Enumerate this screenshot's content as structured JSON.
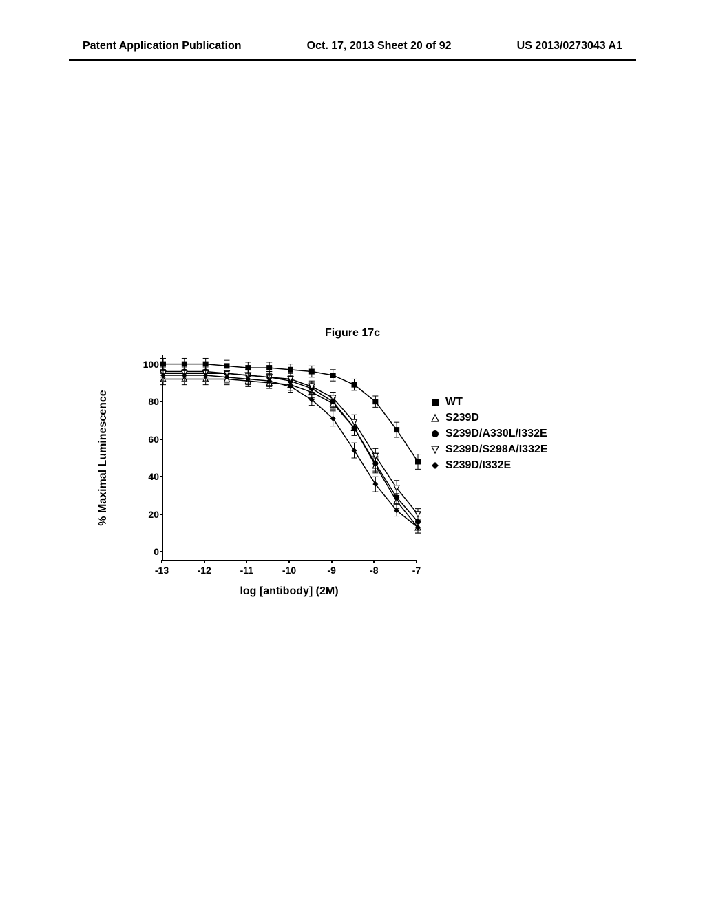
{
  "header": {
    "left": "Patent Application Publication",
    "center": "Oct. 17, 2013  Sheet 20 of 92",
    "right": "US 2013/0273043 A1"
  },
  "figure_title": "Figure 17c",
  "chart": {
    "type": "line",
    "ylabel": "% Maximal Luminescence",
    "xlabel": "log [antibody] (2M)",
    "background_color": "#ffffff",
    "axis_color": "#000000",
    "label_fontsize_pt": 12,
    "tick_fontsize_pt": 11,
    "xlim": [
      -13,
      -7
    ],
    "ylim": [
      -5,
      105
    ],
    "xtick_step": 1,
    "ytick_step": 20,
    "xticks": [
      -13,
      -12,
      -11,
      -10,
      -9,
      -8,
      -7
    ],
    "yticks": [
      0,
      20,
      40,
      60,
      80,
      100
    ],
    "error_bar_width": 4,
    "line_width": 1.5,
    "series": [
      {
        "name": "WT",
        "marker": "filled-square",
        "color": "#000000",
        "x": [
          -13,
          -12.5,
          -12,
          -11.5,
          -11,
          -10.5,
          -10,
          -9.5,
          -9,
          -8.5,
          -8,
          -7.5,
          -7
        ],
        "y": [
          100,
          100,
          100,
          99,
          98,
          98,
          97,
          96,
          94,
          89,
          80,
          65,
          48
        ],
        "err": [
          3,
          3,
          3,
          3,
          3,
          3,
          3,
          3,
          3,
          3,
          3,
          4,
          4
        ]
      },
      {
        "name": "S239D",
        "marker": "open-triangle-up",
        "color": "#000000",
        "x": [
          -13,
          -12.5,
          -12,
          -11.5,
          -11,
          -10.5,
          -10,
          -9.5,
          -9,
          -8.5,
          -8,
          -7.5,
          -7
        ],
        "y": [
          92,
          92,
          92,
          92,
          91,
          90,
          89,
          85,
          79,
          66,
          46,
          27,
          13
        ],
        "err": [
          3,
          3,
          3,
          3,
          3,
          3,
          3,
          3,
          3,
          4,
          4,
          4,
          3
        ]
      },
      {
        "name": "S239D/A330L/I332E",
        "marker": "filled-circle",
        "color": "#000000",
        "x": [
          -13,
          -12.5,
          -12,
          -11.5,
          -11,
          -10.5,
          -10,
          -9.5,
          -9,
          -8.5,
          -8,
          -7.5,
          -7
        ],
        "y": [
          96,
          96,
          96,
          95,
          94,
          93,
          91,
          87,
          80,
          66,
          47,
          29,
          16
        ],
        "err": [
          3,
          3,
          3,
          3,
          3,
          3,
          3,
          3,
          3,
          4,
          4,
          4,
          3
        ]
      },
      {
        "name": "S239D/S298A/I332E",
        "marker": "open-triangle-down",
        "color": "#000000",
        "x": [
          -13,
          -12.5,
          -12,
          -11.5,
          -11,
          -10.5,
          -10,
          -9.5,
          -9,
          -8.5,
          -8,
          -7.5,
          -7
        ],
        "y": [
          95,
          95,
          95,
          95,
          94,
          93,
          92,
          88,
          82,
          69,
          51,
          34,
          20
        ],
        "err": [
          3,
          3,
          3,
          3,
          3,
          3,
          3,
          3,
          3,
          4,
          4,
          4,
          3
        ]
      },
      {
        "name": "S239D/I332E",
        "marker": "filled-diamond",
        "color": "#000000",
        "x": [
          -13,
          -12.5,
          -12,
          -11.5,
          -11,
          -10.5,
          -10,
          -9.5,
          -9,
          -8.5,
          -8,
          -7.5,
          -7
        ],
        "y": [
          94,
          94,
          94,
          93,
          92,
          91,
          88,
          81,
          71,
          54,
          36,
          22,
          13
        ],
        "err": [
          3,
          3,
          3,
          3,
          3,
          3,
          3,
          3,
          4,
          4,
          4,
          3,
          3
        ]
      }
    ]
  },
  "legend": {
    "items": [
      {
        "label": "WT",
        "marker": "filled-square"
      },
      {
        "label": "S239D",
        "marker": "open-triangle-up"
      },
      {
        "label": "S239D/A330L/I332E",
        "marker": "filled-circle"
      },
      {
        "label": "S239D/S298A/I332E",
        "marker": "open-triangle-down"
      },
      {
        "label": "S239D/I332E",
        "marker": "filled-diamond"
      }
    ]
  }
}
